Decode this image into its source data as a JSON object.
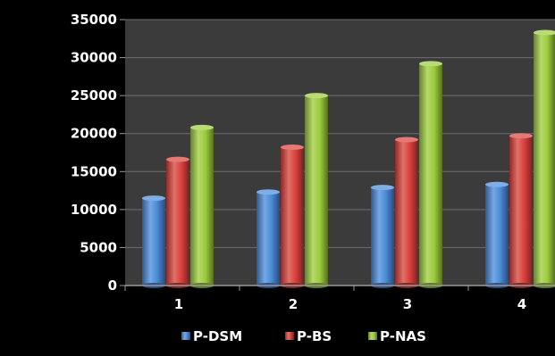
{
  "chart_data": {
    "type": "bar",
    "title": "",
    "xlabel": "",
    "ylabel": "",
    "categories": [
      "1",
      "2",
      "3",
      "4"
    ],
    "series": [
      {
        "name": "P-DSM",
        "values": [
          11500,
          12300,
          12900,
          13300
        ],
        "color": "#4a8ad8"
      },
      {
        "name": "P-BS",
        "values": [
          16600,
          18200,
          19200,
          19700
        ],
        "color": "#d9403a"
      },
      {
        "name": "P-NAS",
        "values": [
          20800,
          25000,
          29200,
          33300
        ],
        "color": "#9ccc3c"
      }
    ],
    "ylim": [
      0,
      35000
    ],
    "y_ticks": [
      "0",
      "5000",
      "10000",
      "15000",
      "20000",
      "25000",
      "30000",
      "35000"
    ],
    "grid": true,
    "legend_position": "bottom",
    "colors": {
      "background": "#000000",
      "plot_area": "#3b3b3b",
      "gridline": "#6e6e6e",
      "text": "#ffffff"
    }
  }
}
